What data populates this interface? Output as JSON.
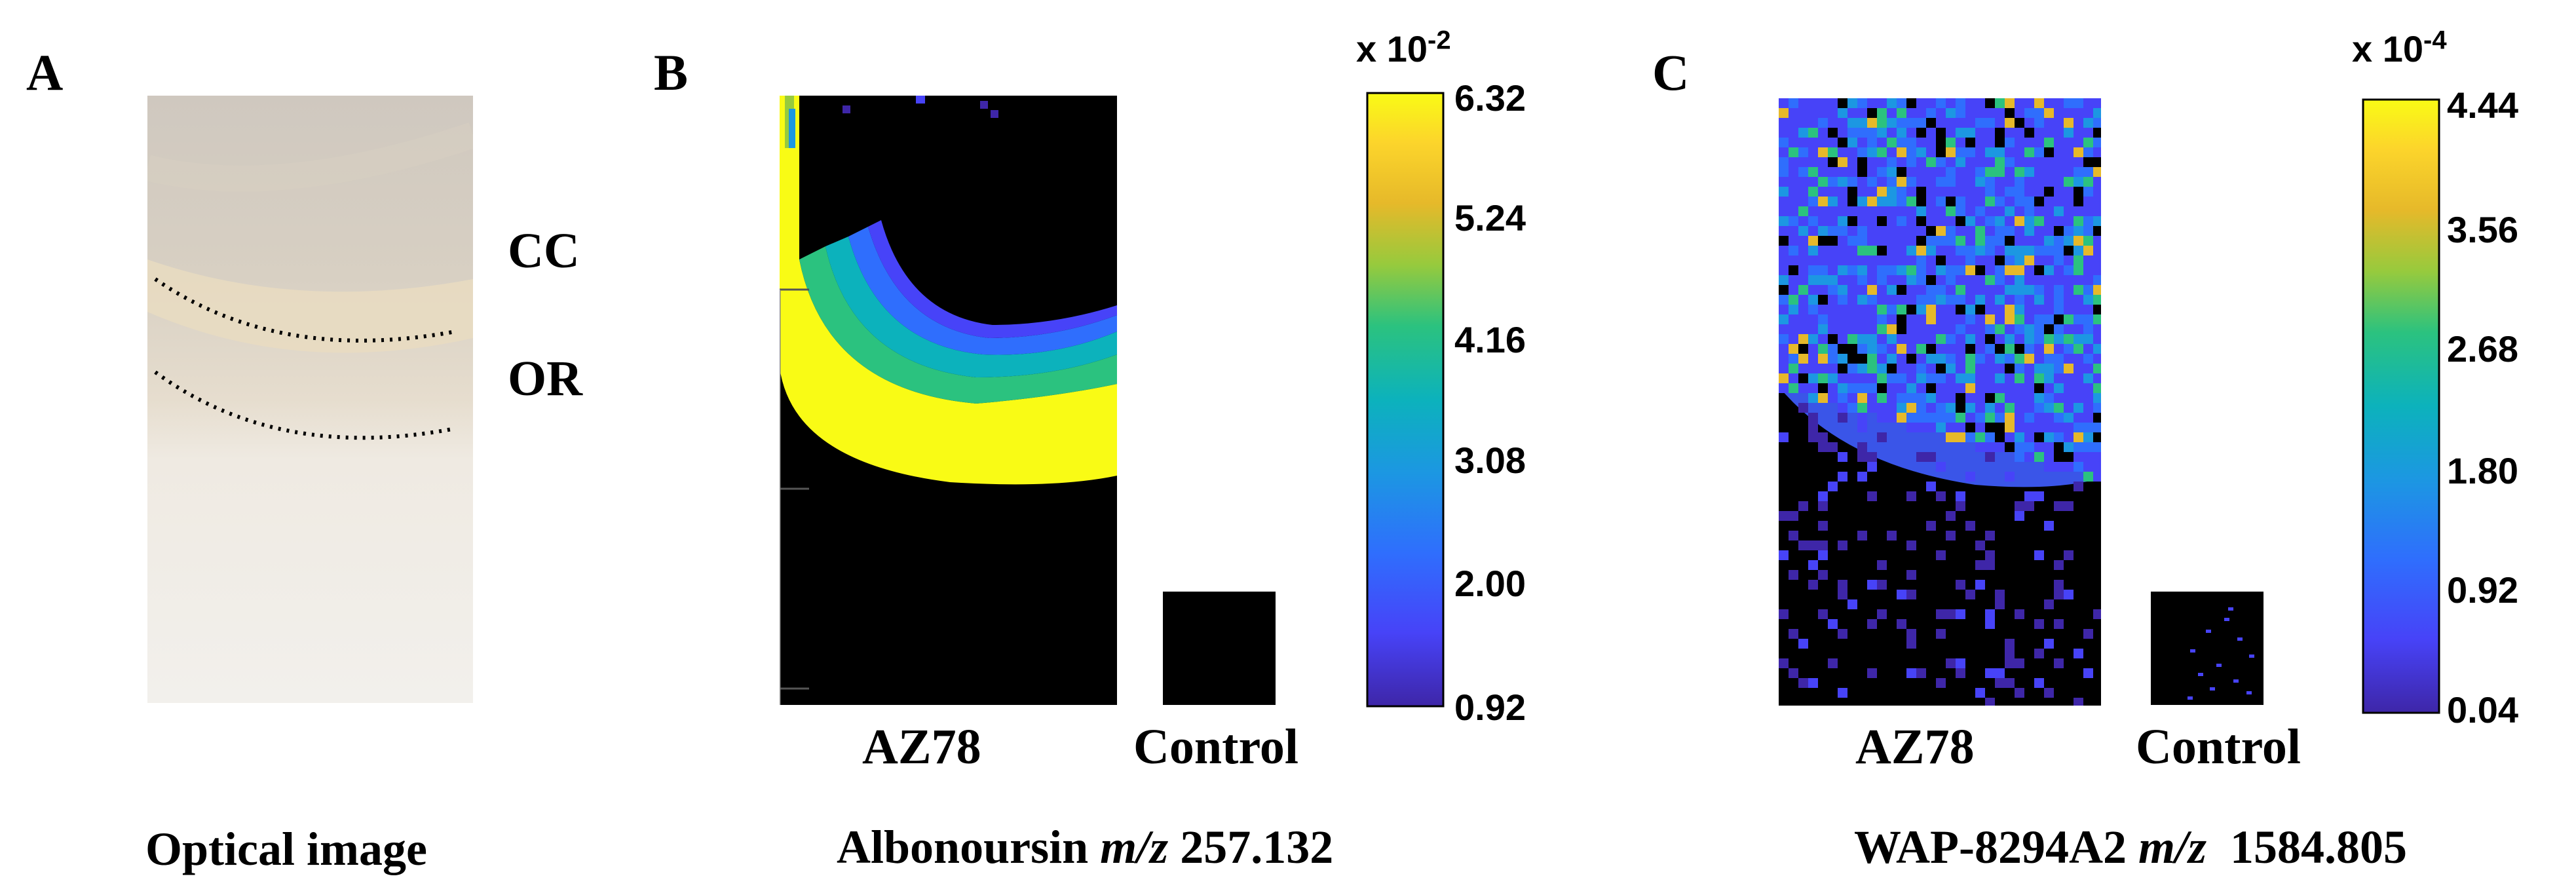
{
  "panel_a": {
    "letter": "A",
    "label_cc": "CC",
    "label_or": "OR",
    "caption": "Optical image"
  },
  "panel_b": {
    "letter": "B",
    "sample_label": "AZ78",
    "control_label": "Control",
    "caption_name": "Albonoursin",
    "caption_mz": "m/z",
    "caption_value": "257.132",
    "colorbar": {
      "exponent_prefix": "x 10",
      "exponent": "-2",
      "ticks": [
        "6.32",
        "5.24",
        "4.16",
        "3.08",
        "2.00",
        "0.92"
      ]
    }
  },
  "panel_c": {
    "letter": "C",
    "sample_label": "AZ78",
    "control_label": "Control",
    "caption_name": "WAP-8294A2",
    "caption_mz": "m/z",
    "caption_value": "1584.805",
    "colorbar": {
      "exponent_prefix": "x 10",
      "exponent": "-4",
      "ticks": [
        "4.44",
        "3.56",
        "2.68",
        "1.80",
        "0.92",
        "0.04"
      ]
    }
  },
  "colors": {
    "colormap": [
      "#3e26a8",
      "#4743f8",
      "#2f6efd",
      "#1c97e2",
      "#0cb2bc",
      "#2bc27f",
      "#97ca3d",
      "#e6b92a",
      "#fcd52b",
      "#f9fb15"
    ],
    "background_black": "#000000",
    "tissue": "#efe9df"
  }
}
